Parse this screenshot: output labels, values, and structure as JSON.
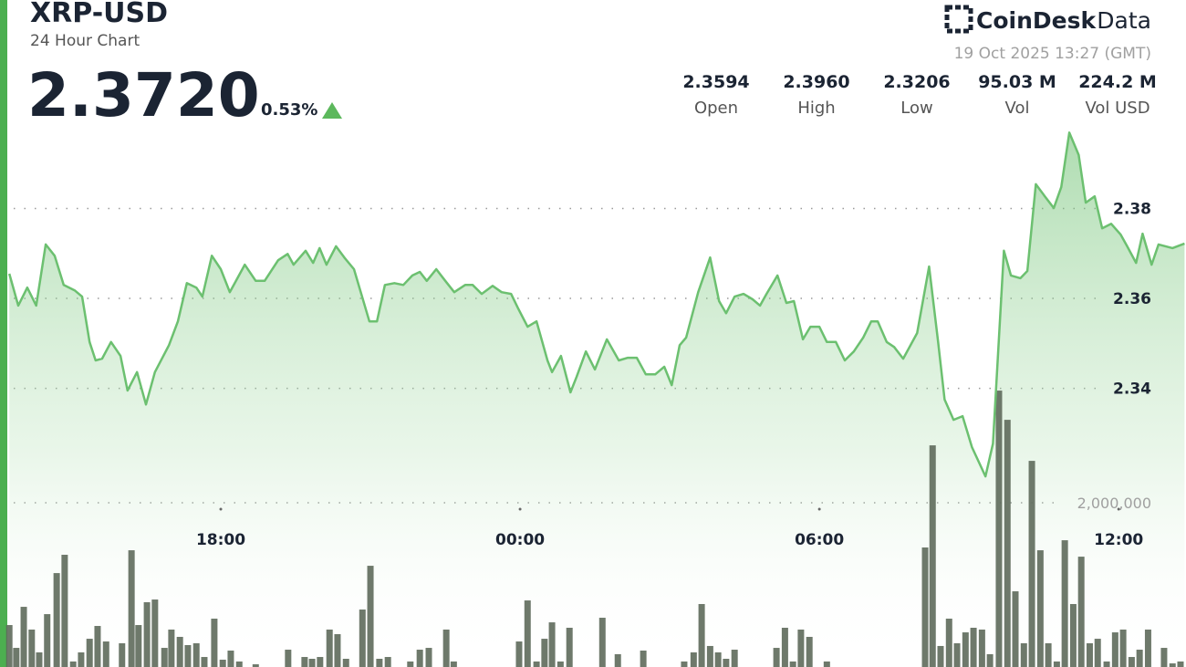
{
  "header": {
    "symbol": "XRP-USD",
    "subtitle": "24 Hour Chart",
    "price": "2.3720",
    "change": "0.53%",
    "brand": "CoinDesk",
    "brand_suffix": "Data",
    "timestamp": "19 Oct 2025 13:27 (GMT)",
    "stats": [
      {
        "figure": "2.3594",
        "name": "Open"
      },
      {
        "figure": "2.3960",
        "name": "High"
      },
      {
        "figure": "2.3206",
        "name": "Low"
      },
      {
        "figure": "95.03 M",
        "name": "Vol"
      },
      {
        "figure": "224.2 M",
        "name": "Vol USD"
      }
    ]
  },
  "chart_data": {
    "type": "line",
    "color": "#6cc070",
    "x": [
      13.76,
      13.94,
      14.12,
      14.3,
      14.49,
      14.67,
      14.85,
      15.07,
      15.22,
      15.37,
      15.49,
      15.62,
      15.8,
      15.99,
      16.13,
      16.32,
      16.5,
      16.68,
      16.96,
      17.14,
      17.32,
      17.51,
      17.63,
      17.82,
      18.0,
      18.18,
      18.48,
      18.7,
      18.88,
      19.15,
      19.34,
      19.46,
      19.7,
      19.85,
      19.98,
      20.12,
      20.31,
      20.49,
      20.67,
      20.98,
      21.13,
      21.29,
      21.48,
      21.66,
      21.84,
      21.99,
      22.13,
      22.32,
      22.5,
      22.68,
      22.9,
      23.05,
      23.23,
      23.45,
      23.63,
      23.82,
      23.96,
      24.15,
      24.33,
      24.55,
      24.64,
      24.82,
      25.01,
      25.13,
      25.32,
      25.5,
      25.74,
      25.98,
      26.16,
      26.34,
      26.52,
      26.71,
      26.89,
      27.04,
      27.2,
      27.33,
      27.57,
      27.81,
      27.99,
      28.13,
      28.3,
      28.48,
      28.66,
      28.81,
      28.94,
      29.16,
      29.34,
      29.49,
      29.67,
      29.82,
      30.0,
      30.15,
      30.33,
      30.51,
      30.69,
      30.88,
      31.04,
      31.17,
      31.35,
      31.5,
      31.68,
      31.96,
      32.2,
      32.38,
      32.51,
      32.69,
      32.87,
      33.06,
      33.33,
      33.48,
      33.7,
      33.84,
      34.03,
      34.17,
      34.34,
      34.52,
      34.7,
      34.85,
      35.01,
      35.2,
      35.34,
      35.52,
      35.67,
      35.85,
      36.04,
      36.17,
      36.35,
      36.48,
      36.66,
      36.8,
      37.08,
      37.32
    ],
    "values": [
      2.3655,
      2.3584,
      2.3624,
      2.3584,
      2.372,
      2.3695,
      2.363,
      2.3618,
      2.3604,
      2.3503,
      2.3462,
      2.3466,
      2.3503,
      2.3472,
      2.3395,
      2.3436,
      2.3364,
      2.3436,
      2.3496,
      2.3549,
      2.3634,
      2.3624,
      2.3604,
      2.3695,
      2.3665,
      2.3614,
      2.3675,
      2.3639,
      2.3639,
      2.3685,
      2.3699,
      2.3675,
      2.3706,
      2.3679,
      2.3712,
      2.3675,
      2.3716,
      2.3689,
      2.3665,
      2.3549,
      2.3549,
      2.363,
      2.3634,
      2.363,
      2.3651,
      2.3659,
      2.3639,
      2.3665,
      2.3639,
      2.3614,
      2.363,
      2.363,
      2.361,
      2.3628,
      2.3614,
      2.361,
      2.3578,
      2.3537,
      2.3549,
      2.3462,
      2.3436,
      2.3472,
      2.3391,
      2.3425,
      2.3482,
      2.3442,
      2.3509,
      2.3462,
      2.3468,
      2.3468,
      2.3431,
      2.3431,
      2.3448,
      2.3407,
      2.3496,
      2.3513,
      2.3614,
      2.3691,
      2.3594,
      2.3567,
      2.3604,
      2.361,
      2.3598,
      2.3584,
      2.361,
      2.3651,
      2.359,
      2.3594,
      2.3509,
      2.3537,
      2.3537,
      2.3503,
      2.3503,
      2.3462,
      2.3482,
      2.3513,
      2.3549,
      2.3549,
      2.3503,
      2.3492,
      2.3466,
      2.3523,
      2.3671,
      2.3503,
      2.3375,
      2.333,
      2.3338,
      2.3269,
      2.3204,
      2.3277,
      2.3706,
      2.3651,
      2.3645,
      2.3661,
      2.3854,
      2.3827,
      2.3801,
      2.3848,
      2.3969,
      2.3919,
      2.3813,
      2.3827,
      2.3756,
      2.3766,
      2.3742,
      2.3716,
      2.3679,
      2.3744,
      2.3675,
      2.372,
      2.3712,
      2.3722
    ],
    "volume": {
      "type": "bar",
      "axis": "y2",
      "color": "#5e6a5b",
      "x": [
        13.76,
        13.9,
        14.05,
        14.21,
        14.36,
        14.52,
        14.71,
        14.87,
        15.04,
        15.2,
        15.37,
        15.53,
        15.7,
        16.02,
        16.21,
        16.35,
        16.52,
        16.68,
        16.87,
        17.01,
        17.18,
        17.34,
        17.51,
        17.67,
        17.87,
        18.04,
        18.2,
        18.37,
        18.7,
        19.35,
        19.68,
        19.83,
        19.99,
        20.18,
        20.34,
        20.51,
        20.84,
        21.0,
        21.18,
        21.35,
        21.8,
        21.99,
        22.17,
        22.52,
        22.67,
        23.98,
        24.15,
        24.33,
        24.49,
        24.64,
        24.81,
        24.99,
        25.65,
        25.96,
        26.47,
        27.29,
        27.48,
        27.64,
        27.81,
        27.97,
        28.13,
        28.3,
        29.14,
        29.31,
        29.47,
        29.63,
        29.8,
        30.15,
        32.12,
        32.27,
        32.43,
        32.6,
        32.76,
        32.93,
        33.09,
        33.26,
        33.42,
        33.6,
        33.77,
        33.93,
        34.1,
        34.26,
        34.43,
        34.59,
        34.76,
        34.92,
        35.09,
        35.25,
        35.42,
        35.58,
        35.76,
        35.93,
        36.09,
        36.26,
        36.42,
        36.59,
        36.91,
        37.08,
        37.24
      ],
      "values": [
        511000,
        233000,
        733000,
        456000,
        178000,
        644000,
        1144000,
        1367000,
        67000,
        178000,
        344000,
        500000,
        311000,
        289000,
        1422000,
        511000,
        789000,
        822000,
        233000,
        456000,
        367000,
        267000,
        289000,
        122000,
        589000,
        89000,
        200000,
        67000,
        33000,
        211000,
        122000,
        100000,
        122000,
        456000,
        400000,
        100000,
        700000,
        1233000,
        100000,
        122000,
        67000,
        211000,
        233000,
        456000,
        67000,
        311000,
        811000,
        67000,
        344000,
        544000,
        67000,
        478000,
        600000,
        156000,
        200000,
        67000,
        178000,
        767000,
        256000,
        178000,
        100000,
        211000,
        233000,
        478000,
        67000,
        456000,
        367000,
        67000,
        1456000,
        2700000,
        256000,
        589000,
        289000,
        422000,
        478000,
        456000,
        156000,
        3367000,
        3011000,
        922000,
        289000,
        2511000,
        1422000,
        289000,
        67000,
        1544000,
        767000,
        1344000,
        289000,
        344000,
        67000,
        422000,
        456000,
        122000,
        211000,
        456000,
        233000,
        44000,
        67000
      ]
    },
    "xlim": [
      13.72,
      37.35
    ],
    "xticks": [
      {
        "value": 18,
        "label": "18:00"
      },
      {
        "value": 24,
        "label": "00:00"
      },
      {
        "value": 30,
        "label": "06:00"
      },
      {
        "value": 36,
        "label": "12:00"
      }
    ],
    "ylim": [
      2.278,
      2.4
    ],
    "yticks": [
      2.34,
      2.36,
      2.38
    ],
    "y2lim": [
      0,
      6680000
    ],
    "y2ticks": [
      {
        "value": 2000000,
        "label": "2,000,000"
      }
    ],
    "grid": true
  }
}
